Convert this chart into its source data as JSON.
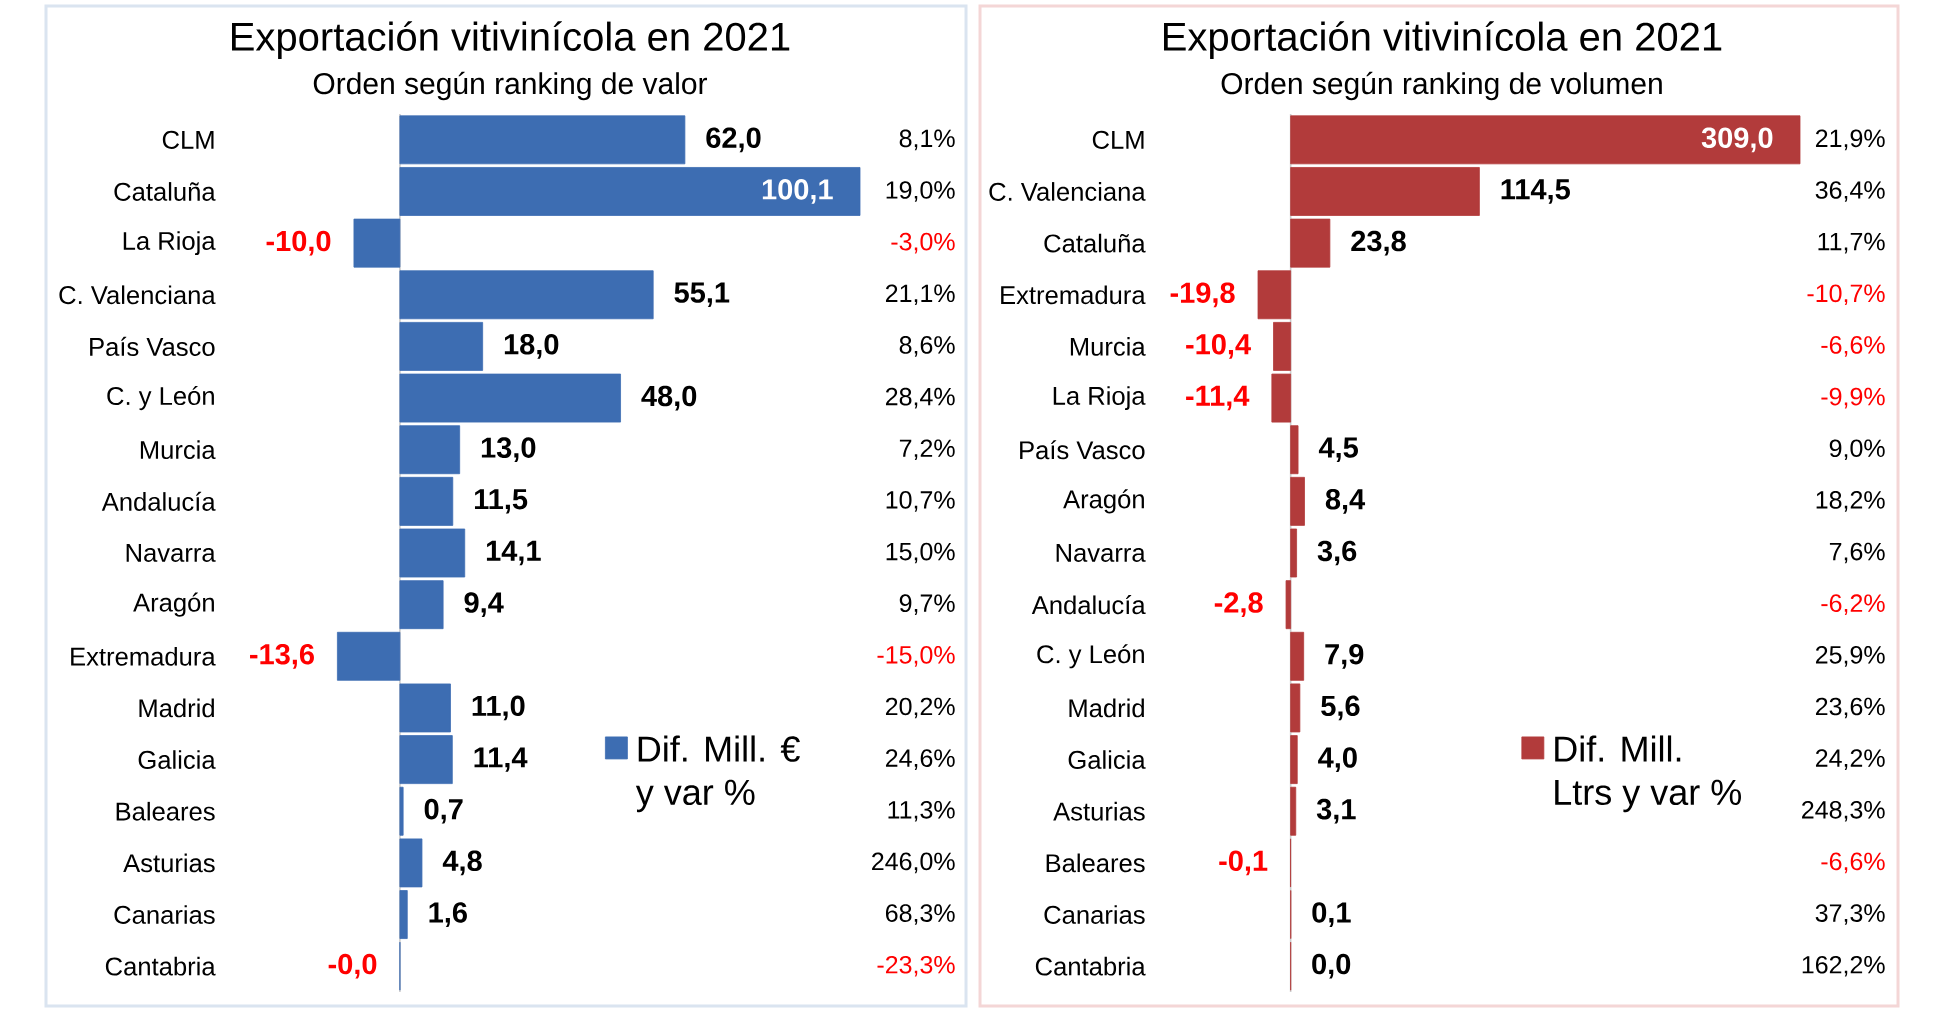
{
  "chart_data": [
    {
      "type": "bar",
      "orientation": "horizontal",
      "title": "Exportación vitivinícola en 2021",
      "subtitle": "Orden según ranking de valor",
      "categories": [
        "CLM",
        "Cataluña",
        "La Rioja",
        "C. Valenciana",
        "País Vasco",
        "C. y León",
        "Murcia",
        "Andalucía",
        "Navarra",
        "Aragón",
        "Extremadura",
        "Madrid",
        "Galicia",
        "Baleares",
        "Asturias",
        "Canarias",
        "Cantabria"
      ],
      "series": [
        {
          "name": "Dif. Mill. € y var %",
          "color": "#3d6db2",
          "values": [
            62.0,
            100.1,
            -10.0,
            55.1,
            18.0,
            48.0,
            13.0,
            11.5,
            14.1,
            9.4,
            -13.6,
            11.0,
            11.4,
            0.7,
            4.8,
            1.6,
            -0.0
          ],
          "value_labels": [
            "62,0",
            "100,1",
            "-10,0",
            "55,1",
            "18,0",
            "48,0",
            "13,0",
            "11,5",
            "14,1",
            "9,4",
            "-13,6",
            "11,0",
            "11,4",
            "0,7",
            "4,8",
            "1,6",
            "-0,0"
          ]
        }
      ],
      "annotations": [
        "8,1%",
        "19,0%",
        "-3,0%",
        "21,1%",
        "8,6%",
        "28,4%",
        "7,2%",
        "10,7%",
        "15,0%",
        "9,7%",
        "-15,0%",
        "20,2%",
        "24,6%",
        "11,3%",
        "246,0%",
        "68,3%",
        "-23,3%"
      ],
      "legend": "bottom right"
    },
    {
      "type": "bar",
      "orientation": "horizontal",
      "title": "Exportación vitivinícola en 2021",
      "subtitle": "Orden según ranking de volumen",
      "categories": [
        "CLM",
        "C. Valenciana",
        "Cataluña",
        "Extremadura",
        "Murcia",
        "La Rioja",
        "País Vasco",
        "Aragón",
        "Navarra",
        "Andalucía",
        "C. y León",
        "Madrid",
        "Galicia",
        "Asturias",
        "Baleares",
        "Canarias",
        "Cantabria"
      ],
      "series": [
        {
          "name": "Dif. Mill. Ltrs y var %",
          "color": "#b23b3b",
          "values": [
            309.0,
            114.5,
            23.8,
            -19.8,
            -10.4,
            -11.4,
            4.5,
            8.4,
            3.6,
            -2.8,
            7.9,
            5.6,
            4.0,
            3.1,
            -0.1,
            0.1,
            0.0
          ],
          "value_labels": [
            "309,0",
            "114,5",
            "23,8",
            "-19,8",
            "-10,4",
            "-11,4",
            "4,5",
            "8,4",
            "3,6",
            "-2,8",
            "7,9",
            "5,6",
            "4,0",
            "3,1",
            "-0,1",
            "0,1",
            "0,0"
          ]
        }
      ],
      "annotations": [
        "21,9%",
        "36,4%",
        "11,7%",
        "-10,7%",
        "-6,6%",
        "-9,9%",
        "9,0%",
        "18,2%",
        "7,6%",
        "-6,2%",
        "25,9%",
        "23,6%",
        "24,2%",
        "248,3%",
        "-6,6%",
        "37,3%",
        "162,2%"
      ],
      "legend": "bottom right"
    }
  ]
}
